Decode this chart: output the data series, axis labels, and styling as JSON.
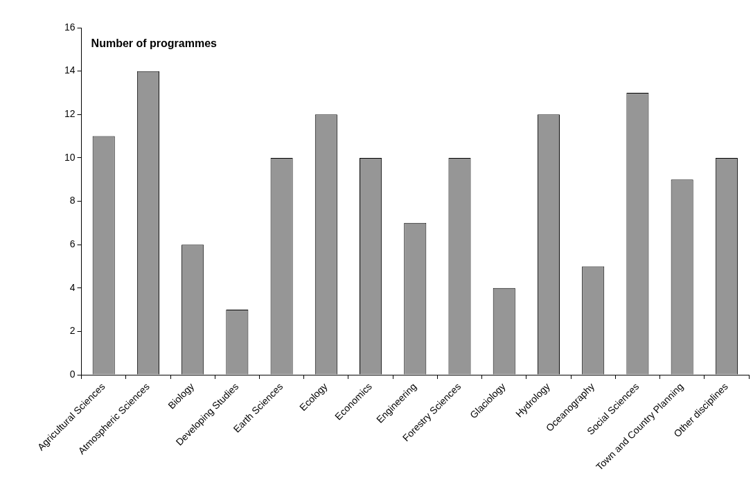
{
  "chart_data": {
    "type": "bar",
    "title": "Number of programmes",
    "categories": [
      "Agricultural Sciences",
      "Atmospheric Sciences",
      "Biology",
      "Developing Studies",
      "Earth Sciences",
      "Ecology",
      "Economics",
      "Engineering",
      "Forestry Sciences",
      "Glaciology",
      "Hydrology",
      "Oceanography",
      "Social Sciences",
      "Town and Country Planning",
      "Other disciplines"
    ],
    "values": [
      11,
      14,
      6,
      3,
      10,
      12,
      10,
      7,
      10,
      4,
      12,
      5,
      13,
      9,
      10
    ],
    "color": "#969696",
    "ylim": [
      0,
      16
    ],
    "yticks": [
      0,
      2,
      4,
      6,
      8,
      10,
      12,
      14,
      16
    ],
    "grid": false,
    "legend": false
  }
}
